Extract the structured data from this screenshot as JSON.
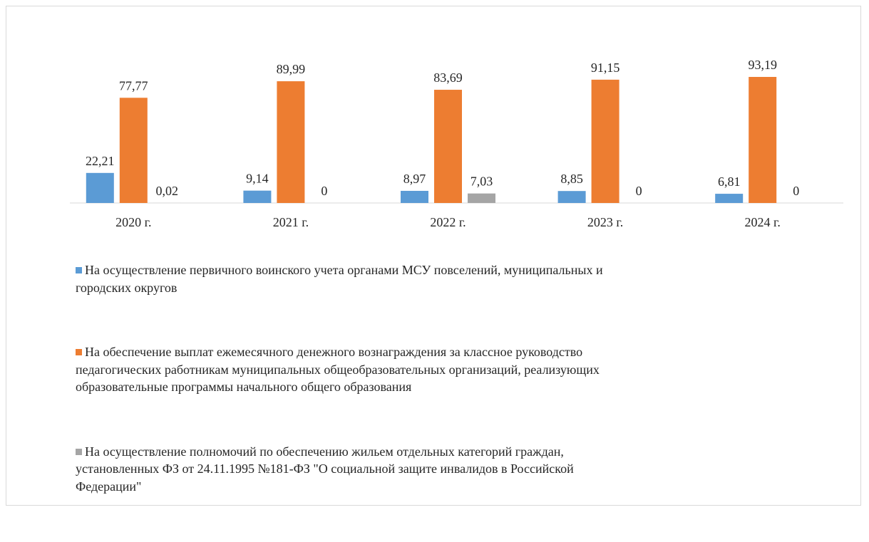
{
  "chart_data": {
    "type": "bar",
    "categories": [
      "2020 г.",
      "2021 г.",
      "2022 г.",
      "2023 г.",
      "2024 г."
    ],
    "series": [
      {
        "name": "На осуществление первичного воинского учета органами МСУ повселений, муниципальных и городских округов",
        "color": "#5b9bd5",
        "values": [
          22.21,
          9.14,
          8.97,
          8.85,
          6.81
        ],
        "value_labels": [
          "22,21",
          "9,14",
          "8,97",
          "8,85",
          "6,81"
        ]
      },
      {
        "name": "На обеспечение выплат ежемесячного денежного вознаграждения за классное руководство педагогических работникам муниципальных общеобразовательных организаций, реализующих образовательные программы начального общего образования",
        "color": "#ed7d31",
        "values": [
          77.77,
          89.99,
          83.69,
          91.15,
          93.19
        ],
        "value_labels": [
          "77,77",
          "89,99",
          "83,69",
          "91,15",
          "93,19"
        ]
      },
      {
        "name": "На осуществление полномочий по обеспечению жильем отдельных категорий граждан, установленных ФЗ от 24.11.1995 №181-ФЗ \"О социальной защите инвалидов в Российской Федерации\"",
        "color": "#a5a5a5",
        "values": [
          0.02,
          0,
          7.03,
          0,
          0
        ],
        "value_labels": [
          "0,02",
          "0",
          "7,03",
          "0",
          "0"
        ]
      }
    ],
    "legend": "bottom"
  }
}
